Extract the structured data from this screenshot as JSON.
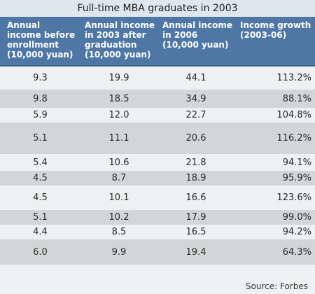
{
  "chart_data": {
    "type": "table",
    "title": "Full-time MBA graduates in 2003",
    "columns": [
      [
        "Annual",
        "income before",
        "enrollment",
        "(10,000 yuan)"
      ],
      [
        "Annual income",
        "in 2003 after",
        "graduation",
        "(10,000 yuan)"
      ],
      [
        "Annual income",
        "in 2006",
        "(10,000 yuan)"
      ],
      [
        "Income growth",
        "(2003-06)"
      ]
    ],
    "rows": [
      [
        "9.3",
        "19.9",
        "44.1",
        "113.2%"
      ],
      [
        "9.8",
        "18.5",
        "34.9",
        "88.1%"
      ],
      [
        "5.9",
        "12.0",
        "22.7",
        "104.8%"
      ],
      [
        "5.1",
        "11.1",
        "20.6",
        "116.2%"
      ],
      [
        "5.4",
        "10.6",
        "21.8",
        "94.1%"
      ],
      [
        "4.5",
        "8.7",
        "18.9",
        "95.9%"
      ],
      [
        "4.5",
        "10.1",
        "16.6",
        "123.6%"
      ],
      [
        "5.1",
        "10.2",
        "17.9",
        "99.0%"
      ],
      [
        "4.4",
        "8.5",
        "16.5",
        "94.2%"
      ],
      [
        "6.0",
        "9.9",
        "19.4",
        "64.3%"
      ]
    ],
    "source": "Source: Forbes"
  },
  "colors": {
    "title_bg": "#dfe7ee",
    "header_bg": "#4f77a6",
    "row_shaded": "#d3d5d7",
    "row_light": "#eef0f2"
  }
}
